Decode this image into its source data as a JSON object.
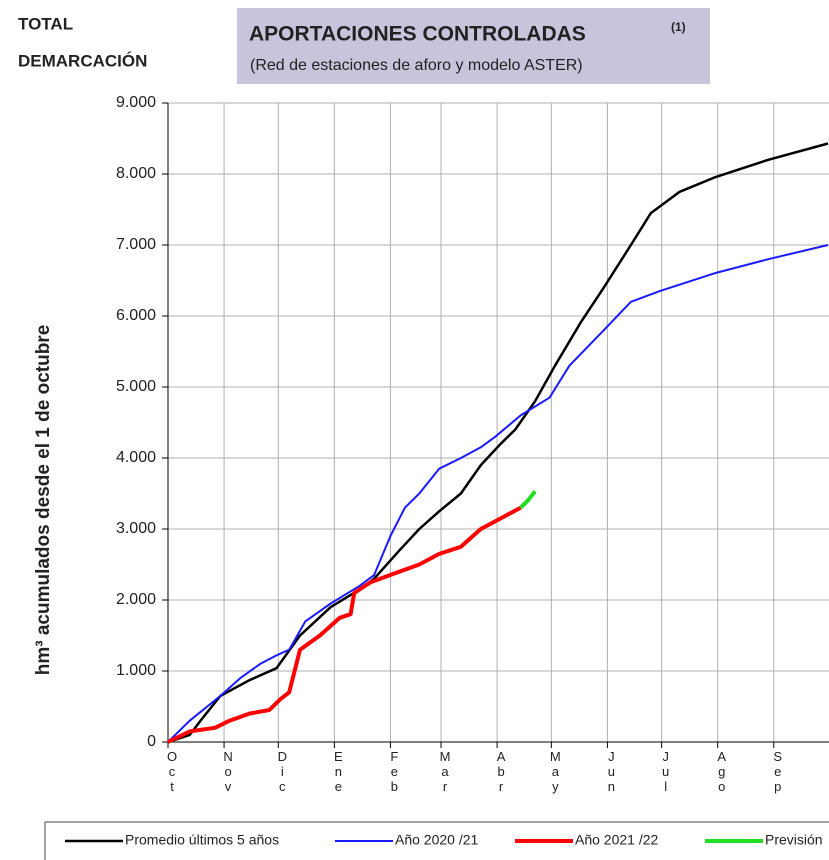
{
  "header": {
    "line1": "TOTAL",
    "line2": "DEMARCACIÓN"
  },
  "chart_data": {
    "type": "line",
    "title": "APORTACIONES CONTROLADAS",
    "title_note": "(1)",
    "subtitle": "(Red de estaciones de aforo y modelo ASTER)",
    "y_label": "hm³ acumulados desde el 1 de octubre",
    "xlim": [
      0,
      365
    ],
    "xticks": [
      {
        "value": 0,
        "label": "Oct"
      },
      {
        "value": 31,
        "label": "Nov"
      },
      {
        "value": 61,
        "label": "Dic"
      },
      {
        "value": 92,
        "label": "Ene"
      },
      {
        "value": 123,
        "label": "Feb"
      },
      {
        "value": 151,
        "label": "Mar"
      },
      {
        "value": 182,
        "label": "Abr"
      },
      {
        "value": 212,
        "label": "May"
      },
      {
        "value": 243,
        "label": "Jun"
      },
      {
        "value": 273,
        "label": "Jul"
      },
      {
        "value": 304,
        "label": "Ago"
      },
      {
        "value": 335,
        "label": "Sep"
      }
    ],
    "ylim": [
      0,
      9000
    ],
    "yticks": [
      0,
      {
        "value": 1000,
        "label": "1.000"
      },
      {
        "value": 2000,
        "label": "2.000"
      },
      {
        "value": 3000,
        "label": "3.000"
      },
      {
        "value": 4000,
        "label": "4.000"
      },
      {
        "value": 5000,
        "label": "5.000"
      },
      {
        "value": 6000,
        "label": "6.000"
      },
      {
        "value": 7000,
        "label": "7.000"
      },
      {
        "value": 8000,
        "label": "8.000"
      },
      {
        "value": 9000,
        "label": "9.000"
      }
    ],
    "grid": true,
    "series": [
      {
        "name": "Promedio últimos 5 años",
        "color": "#000000",
        "width": 2.5,
        "x": [
          0,
          12,
          18,
          29,
          45,
          60,
          73,
          90,
          106,
          114,
          128,
          139,
          150,
          162,
          173,
          184,
          192,
          203,
          214,
          228,
          241,
          256,
          267,
          283,
          302,
          332,
          365
        ],
        "values": [
          0,
          100,
          300,
          650,
          870,
          1040,
          1500,
          1900,
          2150,
          2300,
          2700,
          3000,
          3250,
          3500,
          3900,
          4200,
          4400,
          4800,
          5300,
          5900,
          6400,
          7000,
          7450,
          7750,
          7950,
          8200,
          8430
        ]
      },
      {
        "name": "Año 2020 /21",
        "color": "#1a1aff",
        "width": 2,
        "x": [
          0,
          12,
          29,
          40,
          51,
          60,
          67,
          76,
          90,
          106,
          114,
          123,
          131,
          139,
          150,
          162,
          173,
          181,
          195,
          211,
          222,
          241,
          256,
          272,
          302,
          332,
          365
        ],
        "values": [
          0,
          300,
          650,
          900,
          1100,
          1220,
          1300,
          1700,
          1950,
          2200,
          2350,
          2900,
          3300,
          3500,
          3850,
          4000,
          4150,
          4300,
          4600,
          4850,
          5300,
          5800,
          6200,
          6350,
          6600,
          6800,
          7000
        ]
      },
      {
        "name": "Año 2021 /22",
        "color": "#ff0000",
        "width": 4,
        "x": [
          0,
          12,
          26,
          34,
          45,
          56,
          62,
          67,
          73,
          84,
          95,
          101,
          103,
          112,
          128,
          139,
          150,
          162,
          173,
          184,
          195
        ],
        "values": [
          0,
          150,
          200,
          300,
          400,
          450,
          600,
          700,
          1300,
          1500,
          1750,
          1800,
          2100,
          2250,
          2400,
          2500,
          2650,
          2750,
          3000,
          3150,
          3300
        ]
      },
      {
        "name": "Previsión",
        "color": "#22dd22",
        "width": 4,
        "x": [
          195,
          199,
          203
        ],
        "values": [
          3300,
          3400,
          3530
        ]
      }
    ]
  }
}
